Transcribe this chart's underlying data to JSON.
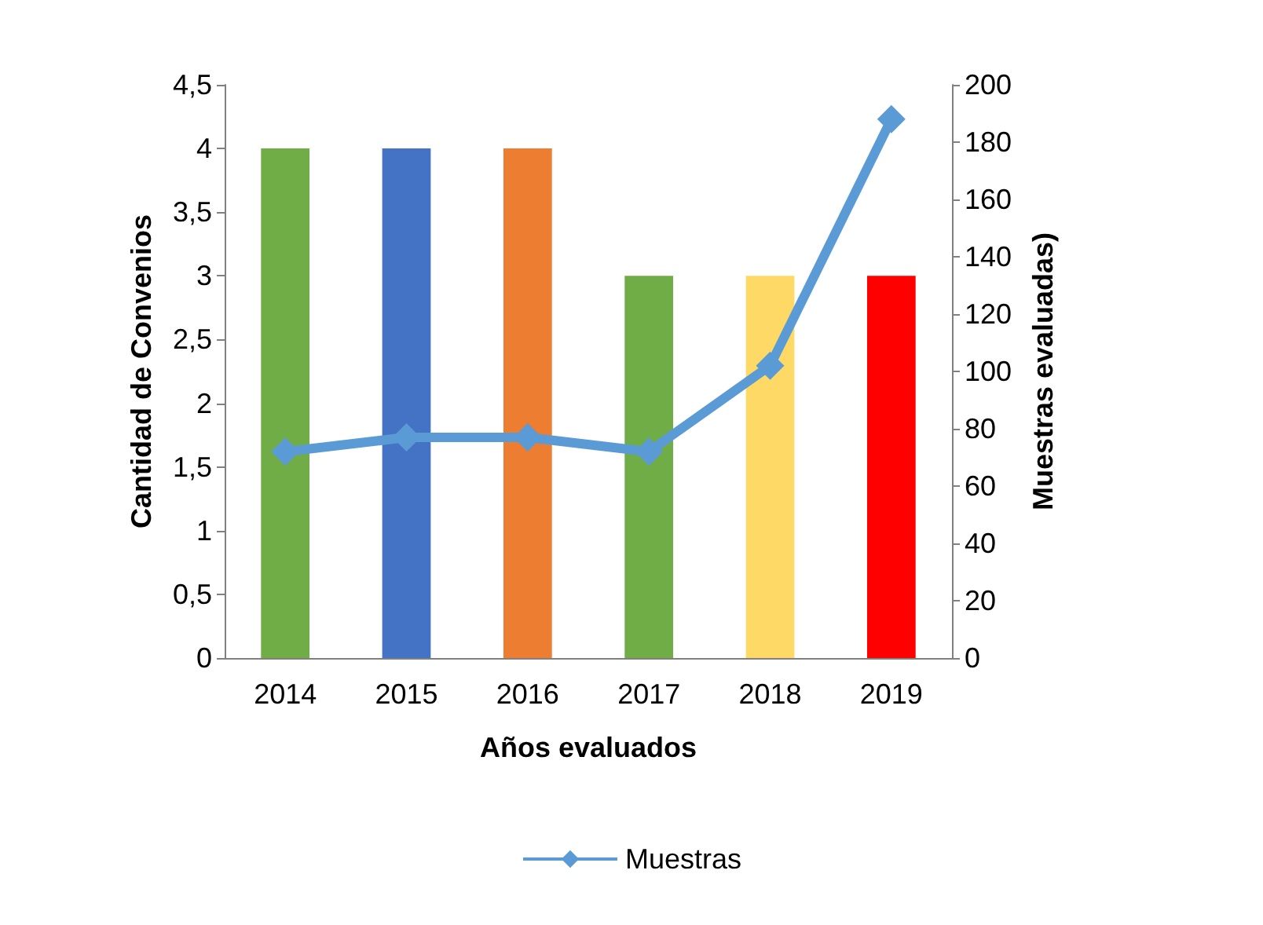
{
  "chart_data": {
    "type": "bar",
    "xlabel": "Años evaluados",
    "ylabel": "Cantidad de Convenios",
    "y2label": "Muestras evaluadas)",
    "categories": [
      "2014",
      "2015",
      "2016",
      "2017",
      "2018",
      "2019"
    ],
    "series": [
      {
        "colors": [
          "#70ad47",
          "#4472c4",
          "#ed7d31",
          "#70ad47",
          "#ffd966",
          "#ff0000"
        ],
        "values": [
          4,
          4,
          4,
          3,
          3,
          3
        ]
      },
      {
        "type": "line",
        "name": "Muestras",
        "color": "#5b9bd5",
        "axis": "y2",
        "marker": "diamond",
        "values": [
          72,
          77,
          77,
          72,
          102,
          188
        ]
      }
    ],
    "ylim": [
      0,
      4.5
    ],
    "yticks": [
      0,
      {
        "value": 0.5,
        "label": "0,5"
      },
      1,
      {
        "value": 1.5,
        "label": "1,5"
      },
      2,
      {
        "value": 2.5,
        "label": "2,5"
      },
      3,
      {
        "value": 3.5,
        "label": "3,5"
      },
      4,
      {
        "value": 4.5,
        "label": "4,5"
      }
    ],
    "y2lim": [
      0,
      200
    ],
    "y2ticks": [
      0,
      20,
      40,
      60,
      80,
      100,
      120,
      140,
      160,
      180,
      200
    ],
    "grid": false,
    "legend": "bottom"
  }
}
